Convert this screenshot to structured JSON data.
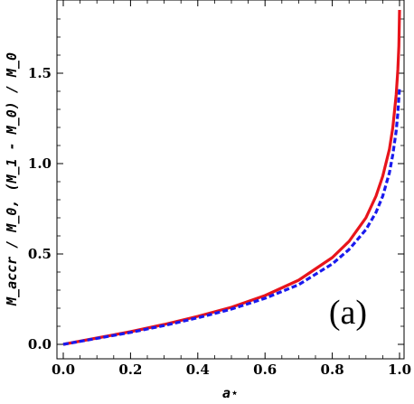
{
  "chart_data": {
    "type": "line",
    "xlabel": "a⋆",
    "ylabel": "M_accr / M_0, (M_1 - M_0) / M_0",
    "xlim": [
      0.0,
      1.0
    ],
    "ylim": [
      -0.03,
      1.9
    ],
    "x_ticks": [
      "0.0",
      "0.2",
      "0.4",
      "0.6",
      "0.8",
      "1.0"
    ],
    "y_ticks": [
      "0.0",
      "0.5",
      "1.0",
      "1.5"
    ],
    "x_tick_values": [
      0.0,
      0.2,
      0.4,
      0.6,
      0.8,
      1.0
    ],
    "y_tick_values": [
      0.0,
      0.5,
      1.0,
      1.5
    ],
    "annotation": "(a)",
    "grid": false,
    "series": [
      {
        "color": "#e8141b",
        "style": "solid",
        "x": [
          0.0,
          0.1,
          0.2,
          0.3,
          0.4,
          0.5,
          0.6,
          0.7,
          0.8,
          0.85,
          0.9,
          0.93,
          0.95,
          0.97,
          0.98,
          0.99,
          0.995,
          0.998,
          1.0
        ],
        "y": [
          0.0,
          0.035,
          0.07,
          0.11,
          0.155,
          0.205,
          0.27,
          0.355,
          0.48,
          0.57,
          0.7,
          0.82,
          0.93,
          1.08,
          1.2,
          1.38,
          1.52,
          1.65,
          1.85
        ]
      },
      {
        "color": "#1a1aee",
        "style": "dashed",
        "x": [
          0.0,
          0.1,
          0.2,
          0.3,
          0.4,
          0.5,
          0.6,
          0.7,
          0.8,
          0.85,
          0.9,
          0.93,
          0.95,
          0.97,
          0.98,
          0.99,
          0.995,
          1.0
        ],
        "y": [
          0.0,
          0.033,
          0.066,
          0.104,
          0.147,
          0.195,
          0.255,
          0.33,
          0.445,
          0.525,
          0.635,
          0.73,
          0.82,
          0.95,
          1.05,
          1.18,
          1.28,
          1.42
        ]
      }
    ]
  }
}
